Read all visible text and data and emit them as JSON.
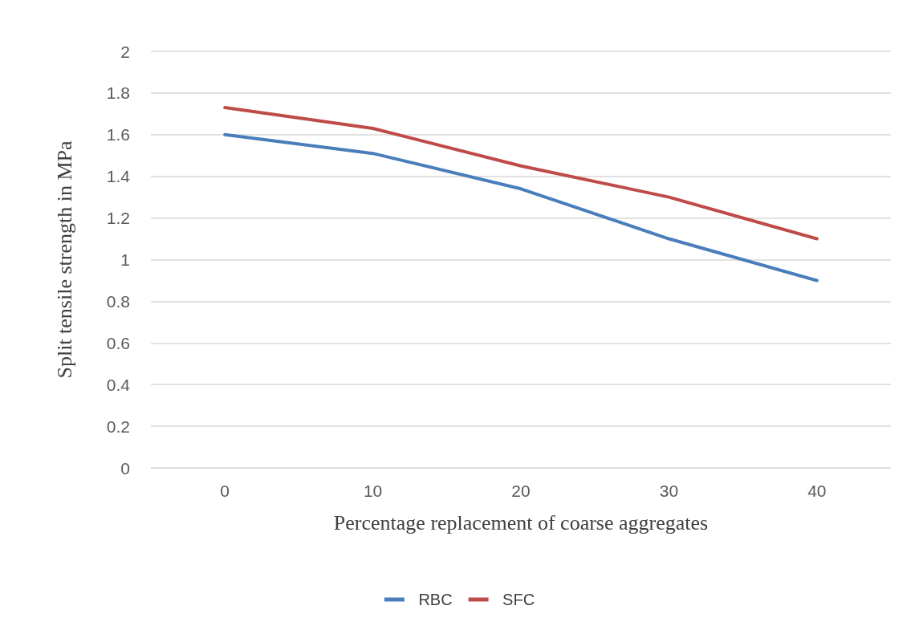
{
  "chart_data": {
    "type": "line",
    "xlabel": "Percentage replacement of coarse aggregates",
    "ylabel": "Split tensile strength in MPa",
    "categories": [
      "0",
      "10",
      "20",
      "30",
      "40"
    ],
    "series": [
      {
        "name": "RBC",
        "color": "#4a7ebb",
        "values": [
          1.6,
          1.51,
          1.34,
          1.1,
          0.9
        ]
      },
      {
        "name": "SFC",
        "color": "#be4b48",
        "values": [
          1.73,
          1.63,
          1.45,
          1.3,
          1.1
        ]
      }
    ],
    "ylim": [
      0,
      2
    ],
    "yticks": [
      0,
      0.2,
      0.4,
      0.6,
      0.8,
      1,
      1.2,
      1.4,
      1.6,
      1.8,
      2
    ],
    "grid": "y",
    "legend": "bottom",
    "marker": "none",
    "line_style": "solid"
  }
}
